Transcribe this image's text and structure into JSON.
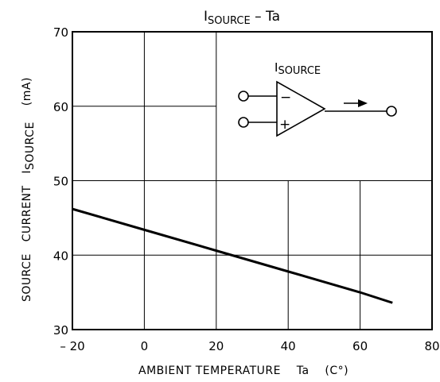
{
  "chart_data": {
    "type": "line",
    "title": {
      "main": "I",
      "sub": "SOURCE",
      "rest": " – Ta"
    },
    "xlabel": "AMBIENT TEMPERATURE    Ta    (C°)",
    "ylabel": {
      "main": "SOURCE   CURRENT   I",
      "sub": "SOURCE",
      "unit": "(mA)"
    },
    "xlim": [
      -20,
      80
    ],
    "ylim": [
      30,
      70
    ],
    "x_ticks": [
      -20,
      0,
      20,
      40,
      60,
      80
    ],
    "x_tick_labels": [
      "– 20",
      "0",
      "20",
      "40",
      "60",
      "80"
    ],
    "y_ticks": [
      30,
      40,
      50,
      60,
      70
    ],
    "y_tick_labels": [
      "30",
      "40",
      "50",
      "60",
      "70"
    ],
    "grid": true,
    "series": [
      {
        "x": [
          -20,
          0,
          20,
          40,
          60,
          69
        ],
        "y": [
          46.2,
          43.4,
          40.6,
          37.8,
          35.0,
          33.6
        ]
      }
    ],
    "inset": {
      "label_main": "I",
      "label_sub": "SOURCE",
      "minus": "−",
      "plus": "+"
    }
  }
}
